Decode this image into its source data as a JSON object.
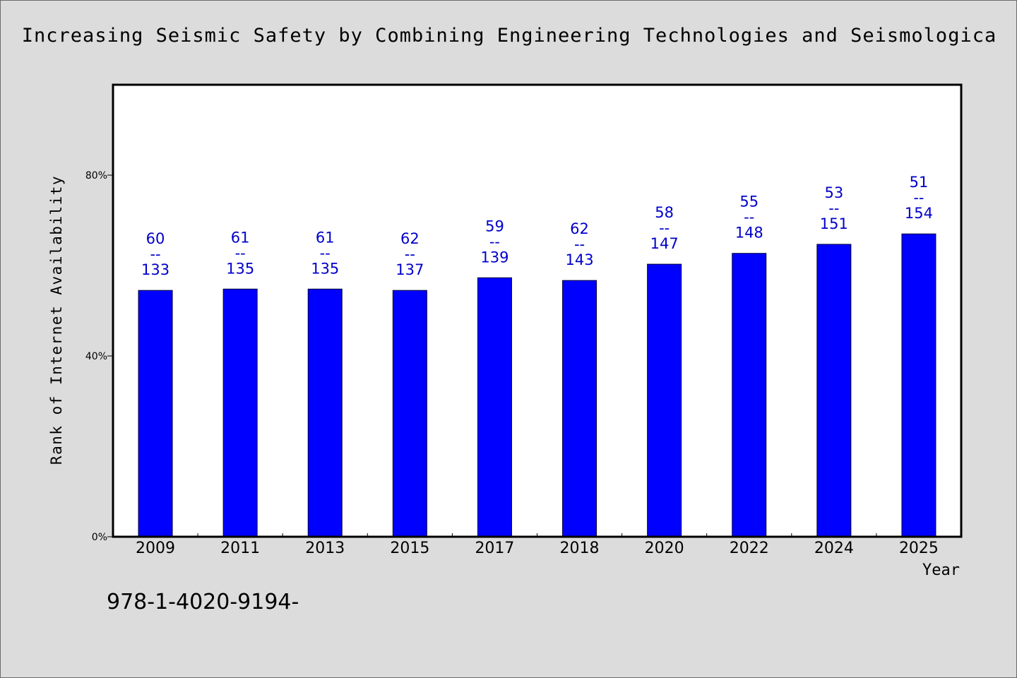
{
  "chart_data": {
    "type": "bar",
    "title": "Increasing Seismic Safety by Combining Engineering Technologies and Seismologica",
    "xlabel": "Year",
    "ylabel": "Rank of Internet Availability",
    "categories": [
      "2009",
      "2011",
      "2013",
      "2015",
      "2017",
      "2018",
      "2020",
      "2022",
      "2024",
      "2025"
    ],
    "values": [
      54.5,
      54.8,
      54.8,
      54.5,
      57.3,
      56.7,
      60.3,
      62.7,
      64.7,
      67.0
    ],
    "point_labels": [
      {
        "top": "60",
        "sep": "--",
        "bottom": "133"
      },
      {
        "top": "61",
        "sep": "--",
        "bottom": "135"
      },
      {
        "top": "61",
        "sep": "--",
        "bottom": "135"
      },
      {
        "top": "62",
        "sep": "--",
        "bottom": "137"
      },
      {
        "top": "59",
        "sep": "--",
        "bottom": "139"
      },
      {
        "top": "62",
        "sep": "--",
        "bottom": "143"
      },
      {
        "top": "58",
        "sep": "--",
        "bottom": "147"
      },
      {
        "top": "55",
        "sep": "--",
        "bottom": "148"
      },
      {
        "top": "53",
        "sep": "--",
        "bottom": "151"
      },
      {
        "top": "51",
        "sep": "--",
        "bottom": "154"
      }
    ],
    "ylim": [
      0,
      100
    ],
    "yticks": [
      {
        "value": 0,
        "label": "0%"
      },
      {
        "value": 40,
        "label": "40%"
      },
      {
        "value": 80,
        "label": "80%"
      }
    ],
    "grid": false,
    "bar_color": "#0000ff",
    "label_color": "#0000cc"
  },
  "footer": {
    "text": "978-1-4020-9194-"
  }
}
